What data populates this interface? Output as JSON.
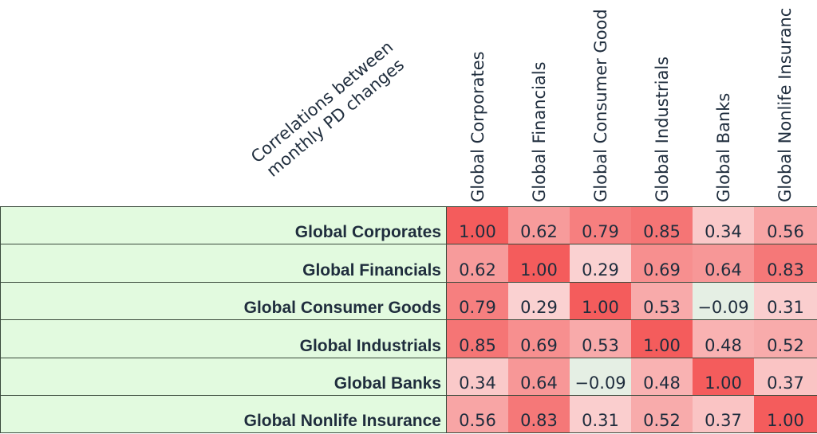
{
  "chart_data": {
    "type": "heatmap",
    "corner_label_lines": [
      "Correlations between",
      "monthly PD changes"
    ],
    "columns": [
      "Global Corporates",
      "Global Financials",
      "Global Consumer Good",
      "Global Industrials",
      "Global Banks",
      "Global Nonlife Insuranc"
    ],
    "rows": [
      "Global Corporates",
      "Global Financials",
      "Global Consumer Goods",
      "Global Industrials",
      "Global Banks",
      "Global Nonlife Insurance"
    ],
    "values": [
      [
        1.0,
        0.62,
        0.79,
        0.85,
        0.34,
        0.56
      ],
      [
        0.62,
        1.0,
        0.29,
        0.69,
        0.64,
        0.83
      ],
      [
        0.79,
        0.29,
        1.0,
        0.53,
        -0.09,
        0.31
      ],
      [
        0.85,
        0.69,
        0.53,
        1.0,
        0.48,
        0.52
      ],
      [
        0.34,
        0.64,
        -0.09,
        0.48,
        1.0,
        0.37
      ],
      [
        0.56,
        0.83,
        0.31,
        0.52,
        0.37,
        1.0
      ]
    ],
    "labels": [
      [
        "1.00",
        "0.62",
        "0.79",
        "0.85",
        "0.34",
        "0.56"
      ],
      [
        "0.62",
        "1.00",
        "0.29",
        "0.69",
        "0.64",
        "0.83"
      ],
      [
        "0.79",
        "0.29",
        "1.00",
        "0.53",
        "−0.09",
        "0.31"
      ],
      [
        "0.85",
        "0.69",
        "0.53",
        "1.00",
        "0.48",
        "0.52"
      ],
      [
        "0.34",
        "0.64",
        "−0.09",
        "0.48",
        "1.00",
        "0.37"
      ],
      [
        "0.56",
        "0.83",
        "0.31",
        "0.52",
        "0.37",
        "1.00"
      ]
    ],
    "color_scale": {
      "low": "#e4efe4",
      "mid": "#fbe0e0",
      "high": "#f45c5c"
    },
    "vrange": [
      -0.1,
      1.0
    ]
  }
}
